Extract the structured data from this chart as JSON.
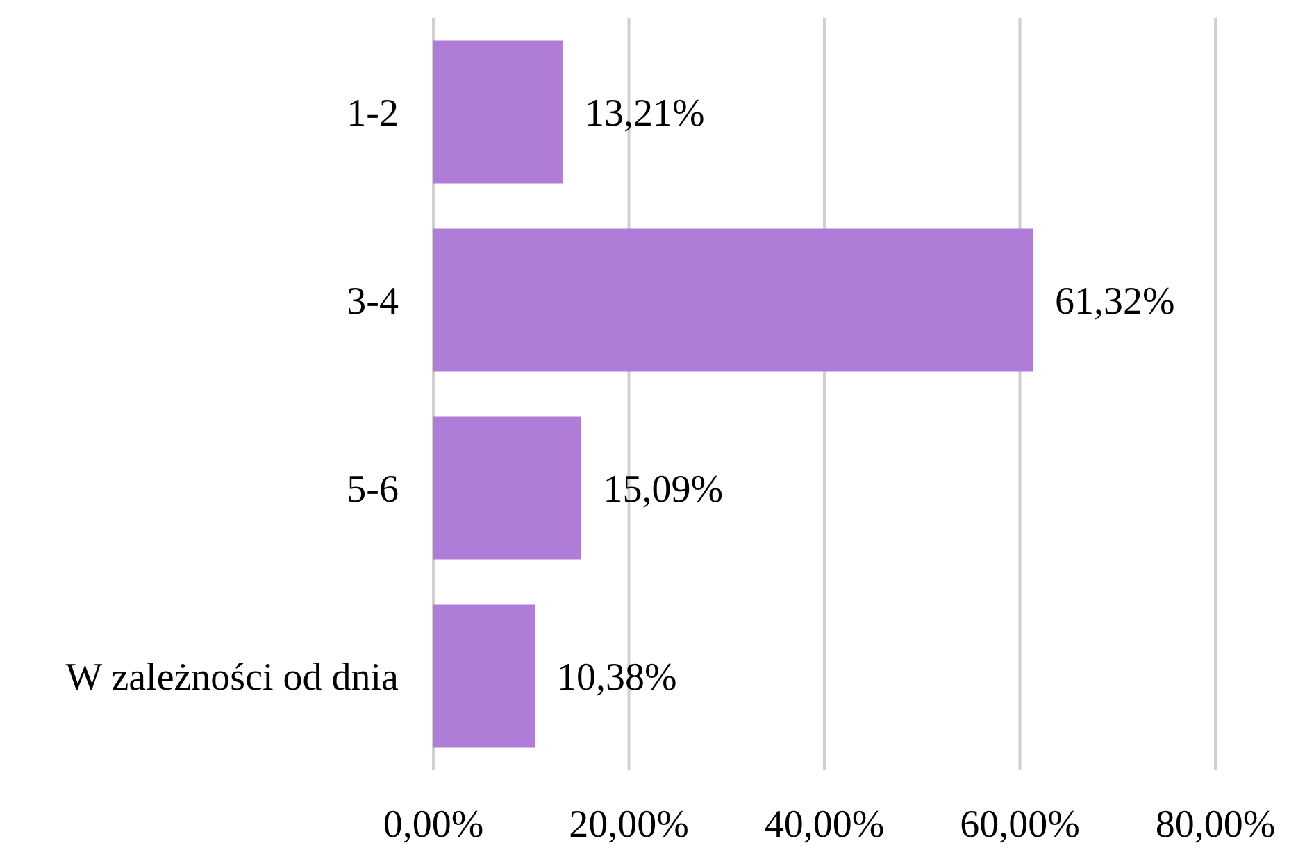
{
  "chart_data": {
    "type": "bar",
    "orientation": "horizontal",
    "categories": [
      "1-2",
      "3-4",
      "5-6",
      "W zależności od dnia"
    ],
    "values": [
      13.21,
      61.32,
      15.09,
      10.38
    ],
    "color": "#af7cd7",
    "value_labels": [
      "13,21%",
      "61,32%",
      "15,09%",
      "10,38%"
    ],
    "xlim": [
      0,
      80
    ],
    "xticks": [
      {
        "value": 0,
        "label": "0,00%"
      },
      {
        "value": 20,
        "label": "20,00%"
      },
      {
        "value": 40,
        "label": "40,00%"
      },
      {
        "value": 60,
        "label": "60,00%"
      },
      {
        "value": 80,
        "label": "80,00%"
      }
    ],
    "grid": "x"
  }
}
